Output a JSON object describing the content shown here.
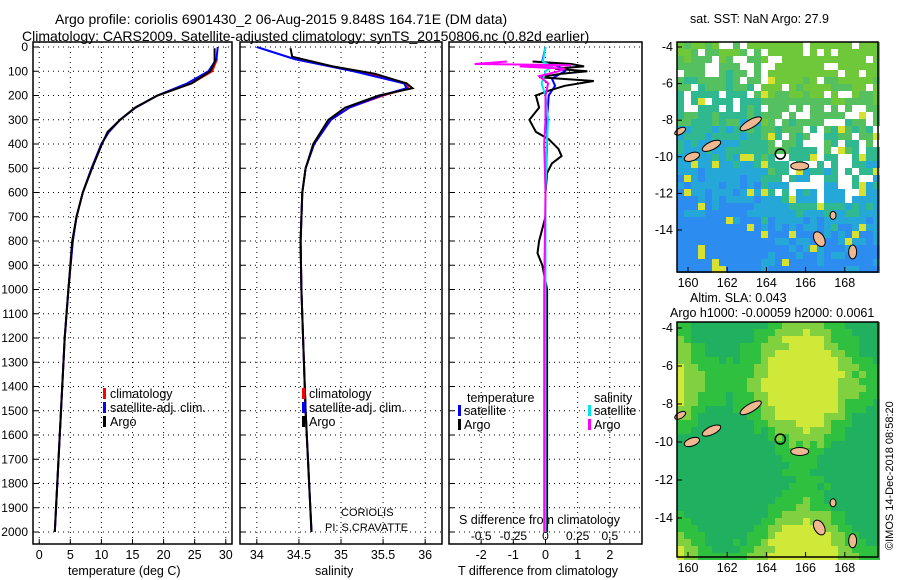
{
  "title": {
    "line1": "Argo profile: coriolis 6901430_2 06-Aug-2015 9.848S 164.71E (DM data)",
    "line2": "Climatology: CARS2009. Satellite-adjusted climatology: synTS_20150806.nc (0.82d earlier)"
  },
  "footer": "©IMOS 14-Dec-2018 08:58:20",
  "colors": {
    "climatology": "#ff0000",
    "satellite": "#0000ff",
    "argo": "#000000",
    "sat_salinity": "#00e5e5",
    "argo_salinity": "#ff00ff",
    "land": "#f0b890"
  },
  "chart_data": [
    {
      "type": "line",
      "name": "temperature",
      "xlabel": "temperature (deg C)",
      "xlim": [
        -1,
        31
      ],
      "xticks": [
        0,
        5,
        10,
        15,
        20,
        25,
        30
      ],
      "ylim": [
        0,
        2050
      ],
      "yticks": [
        0,
        100,
        200,
        300,
        400,
        500,
        600,
        700,
        800,
        900,
        1000,
        1100,
        1200,
        1300,
        1400,
        1500,
        1600,
        1700,
        1800,
        1900,
        2000
      ],
      "legend": [
        "climatology",
        "satellite-adj. clim.",
        "Argo"
      ],
      "series": [
        {
          "name": "climatology",
          "depth": [
            50,
            100,
            150,
            200,
            250,
            300,
            350,
            400,
            500,
            600,
            700,
            800,
            1000,
            1200,
            1500,
            2000
          ],
          "values": [
            28.6,
            27.8,
            24.5,
            19,
            15.5,
            13,
            11.2,
            10,
            8.4,
            7,
            6,
            5.4,
            4.7,
            4.1,
            3.5,
            2.5
          ]
        },
        {
          "name": "satellite-adj. clim.",
          "depth": [
            0,
            50,
            100,
            150,
            200,
            250,
            300,
            350,
            400,
            500,
            600,
            700,
            800,
            1000,
            1200,
            1500,
            2000
          ],
          "values": [
            28.7,
            28.5,
            27.2,
            23.8,
            19,
            15.5,
            13,
            11.2,
            10,
            8.4,
            7,
            6,
            5.4,
            4.7,
            4.1,
            3.5,
            2.5
          ]
        },
        {
          "name": "Argo",
          "depth": [
            5,
            60,
            75,
            100,
            150,
            200,
            250,
            300,
            350,
            400,
            500,
            600,
            700,
            800,
            1000,
            1200,
            1500,
            2000
          ],
          "values": [
            28.2,
            28.2,
            28.0,
            27.5,
            24.5,
            19,
            15.4,
            13,
            11,
            10.1,
            8.5,
            7,
            6,
            5.3,
            4.7,
            4.1,
            3.5,
            2.5
          ]
        }
      ]
    },
    {
      "type": "line",
      "name": "salinity",
      "xlabel": "salinity",
      "xlim": [
        33.8,
        36.2
      ],
      "xticks": [
        34,
        34.5,
        35,
        35.5,
        36
      ],
      "legend": [
        "climatology",
        "satellite-adj. clim.",
        "Argo"
      ],
      "annotation": [
        "CORIOLIS",
        "PI: S.CRAVATTE"
      ],
      "series": [
        {
          "name": "climatology",
          "depth": [
            50,
            100,
            150,
            170,
            200,
            250,
            300,
            400,
            500,
            600,
            800,
            1000,
            1500,
            2000
          ],
          "values": [
            34.45,
            35.2,
            35.78,
            35.8,
            35.5,
            35.1,
            34.88,
            34.68,
            34.58,
            34.54,
            34.52,
            34.53,
            34.58,
            34.65
          ]
        },
        {
          "name": "satellite-adj. clim.",
          "depth": [
            0,
            50,
            100,
            150,
            170,
            200,
            250,
            300,
            400,
            500,
            600,
            800,
            1000,
            1500,
            2000
          ],
          "values": [
            34.0,
            34.45,
            35.15,
            35.75,
            35.78,
            35.48,
            35.1,
            34.88,
            34.68,
            34.58,
            34.54,
            34.52,
            34.53,
            34.58,
            34.65
          ]
        },
        {
          "name": "Argo",
          "depth": [
            5,
            40,
            80,
            110,
            150,
            170,
            200,
            250,
            300,
            400,
            500,
            600,
            800,
            1000,
            1500,
            2000
          ],
          "values": [
            34.4,
            34.42,
            34.9,
            35.4,
            35.78,
            35.85,
            35.45,
            35.05,
            34.85,
            34.67,
            34.58,
            34.54,
            34.52,
            34.53,
            34.58,
            34.65
          ]
        }
      ]
    },
    {
      "type": "line",
      "name": "differences",
      "xlabel": "T difference from climatology",
      "xlim": [
        -3,
        3
      ],
      "xticks": [
        -2,
        -1,
        0,
        1,
        2
      ],
      "x2label": "S difference from climatology",
      "x2ticks": [
        -0.5,
        -0.25,
        0,
        0.25,
        0.5
      ],
      "legend_t": {
        "title": "temperature",
        "items": [
          "satellite",
          "Argo"
        ]
      },
      "legend_s": {
        "title": "salinity",
        "items": [
          "satellite",
          "Argo"
        ]
      },
      "series": [
        {
          "name": "T satellite",
          "var": "T",
          "depth": [
            0,
            60,
            80,
            100,
            130,
            160,
            200,
            300,
            400,
            600,
            1000,
            2000
          ],
          "values": [
            0,
            -0.1,
            0.4,
            0.6,
            0.2,
            0.3,
            0.1,
            0.05,
            0.05,
            0,
            0,
            0
          ]
        },
        {
          "name": "T Argo",
          "var": "T",
          "depth": [
            60,
            70,
            80,
            90,
            100,
            110,
            125,
            140,
            160,
            180,
            200,
            250,
            300,
            350,
            380,
            420,
            450,
            480,
            520,
            600,
            700,
            800,
            850,
            900,
            1000,
            1200,
            1500,
            2000
          ],
          "values": [
            -0.4,
            0.8,
            1.2,
            0.3,
            1.3,
            0.5,
            -0.2,
            1.5,
            0.6,
            0.1,
            -0.3,
            -0.2,
            -0.5,
            -0.3,
            0.1,
            0.4,
            0.5,
            0.2,
            0.05,
            0,
            0,
            -0.2,
            -0.25,
            -0.1,
            0.05,
            0.05,
            0.05,
            0.05
          ]
        },
        {
          "name": "S satellite",
          "var": "S",
          "depth": [
            0,
            60,
            80,
            100,
            150,
            200,
            300,
            400,
            600,
            1000,
            2000
          ],
          "values": [
            0,
            -0.02,
            0.05,
            0,
            -0.03,
            0,
            0.02,
            0.01,
            0,
            0,
            0
          ]
        },
        {
          "name": "S Argo",
          "var": "S",
          "depth": [
            60,
            70,
            75,
            80,
            90,
            100,
            120,
            150,
            200,
            300,
            400,
            600,
            1000,
            2000
          ],
          "values": [
            -0.3,
            -0.55,
            0.2,
            -0.2,
            0.15,
            0.1,
            -0.05,
            0.02,
            0,
            0,
            -0.01,
            0,
            -0.01,
            -0.01
          ]
        }
      ]
    }
  ],
  "maps": [
    {
      "title": "sat. SST: NaN Argo: 27.9",
      "lon_ticks": [
        160,
        162,
        164,
        166,
        168
      ],
      "lat_ticks": [
        -4,
        -6,
        -8,
        -10,
        -12,
        -14
      ],
      "argo_position": {
        "lon": 164.71,
        "lat": -9.848
      }
    },
    {
      "title": "Altim. SLA: 0.043",
      "subtitle": "Argo h1000: -0.00059 h2000: 0.0061",
      "lon_ticks": [
        160,
        162,
        164,
        166,
        168
      ],
      "lat_ticks": [
        -4,
        -6,
        -8,
        -10,
        -12,
        -14
      ],
      "argo_position": {
        "lon": 164.71,
        "lat": -9.848
      }
    }
  ]
}
